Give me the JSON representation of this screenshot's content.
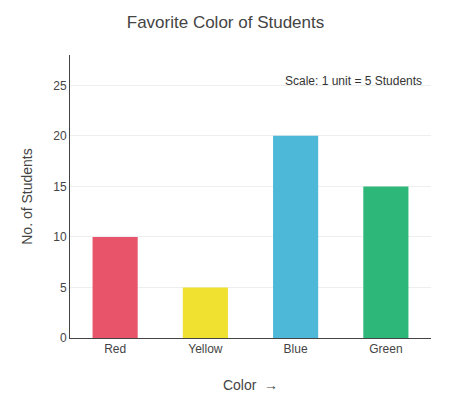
{
  "chart_data": {
    "type": "bar",
    "title": "Favorite Color of Students",
    "categories": [
      "Red",
      "Yellow",
      "Blue",
      "Green"
    ],
    "values": [
      10,
      5,
      20,
      15
    ],
    "colors": [
      "#e8546a",
      "#f0e030",
      "#4db8d8",
      "#2db87a"
    ],
    "xlabel": "Color  →",
    "ylabel": "No. of Students",
    "ylim": [
      0,
      28
    ],
    "yticks": [
      0,
      5,
      10,
      15,
      20,
      25
    ],
    "grid": true,
    "annotations": [
      "Scale: 1 unit = 5 Students"
    ]
  }
}
